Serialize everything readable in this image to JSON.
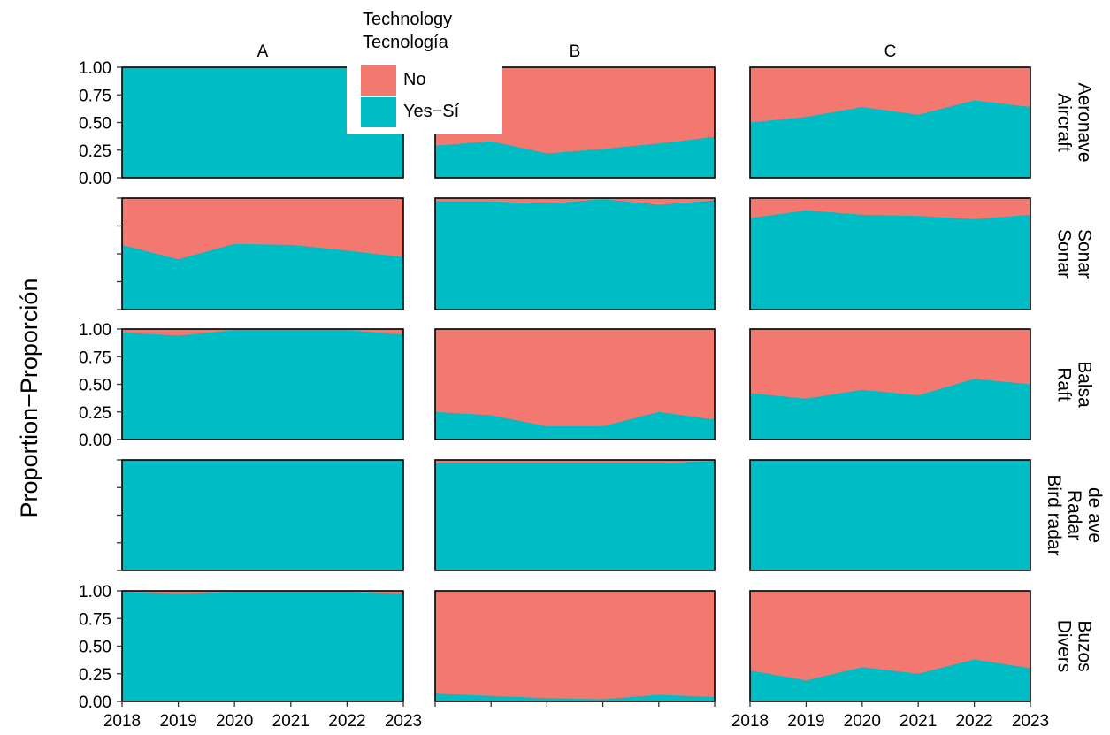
{
  "colors": {
    "no": "#F37870",
    "yes": "#00BCC4",
    "frame": "#000000"
  },
  "legend": {
    "title_line1": "Technology",
    "title_line2": "Tecnología",
    "items": [
      {
        "label": "No",
        "color": "#F37870"
      },
      {
        "label": "Yes−Sí",
        "color": "#00BCC4"
      }
    ]
  },
  "y_axis_title": "Proportion−Proporción",
  "chart_data": {
    "type": "area",
    "x": [
      2018,
      2019,
      2020,
      2021,
      2022,
      2023
    ],
    "x_tick_labels": [
      "2018",
      "2019",
      "2020",
      "2021",
      "2022",
      "2023"
    ],
    "y_tick_labels": [
      "0.00",
      "0.25",
      "0.50",
      "0.75",
      "1.00"
    ],
    "ylim": [
      0,
      1
    ],
    "columns": [
      "A",
      "B",
      "C"
    ],
    "rows": [
      {
        "label_line1": "Aircraft",
        "label_line2": "Aeronave"
      },
      {
        "label_line1": "Sonar",
        "label_line2": "Sonar"
      },
      {
        "label_line1": "Raft",
        "label_line2": "Balsa"
      },
      {
        "label_line1": "Bird radar",
        "label_line2": "Radar",
        "label_line3": "de ave"
      },
      {
        "label_line1": "Divers",
        "label_line2": "Buzos"
      }
    ],
    "series_order": [
      "Yes−Sí",
      "No"
    ],
    "yes_proportion": [
      [
        [
          1.0,
          1.0,
          1.0,
          1.0,
          1.0,
          1.0
        ],
        [
          0.29,
          0.33,
          0.22,
          0.26,
          0.31,
          0.37
        ],
        [
          0.5,
          0.55,
          0.64,
          0.57,
          0.7,
          0.64
        ]
      ],
      [
        [
          0.58,
          0.45,
          0.59,
          0.58,
          0.53,
          0.47
        ],
        [
          0.97,
          0.97,
          0.95,
          0.99,
          0.94,
          0.98
        ],
        [
          0.82,
          0.89,
          0.85,
          0.84,
          0.81,
          0.85
        ]
      ],
      [
        [
          0.97,
          0.94,
          0.99,
          0.99,
          0.99,
          0.95
        ],
        [
          0.25,
          0.22,
          0.12,
          0.12,
          0.25,
          0.18
        ],
        [
          0.42,
          0.37,
          0.45,
          0.4,
          0.55,
          0.5
        ]
      ],
      [
        [
          1.0,
          1.0,
          1.0,
          1.0,
          1.0,
          1.0
        ],
        [
          0.97,
          0.97,
          0.97,
          0.97,
          0.97,
          0.99
        ],
        [
          1.0,
          1.0,
          1.0,
          1.0,
          1.0,
          1.0
        ]
      ],
      [
        [
          0.99,
          0.97,
          0.99,
          0.99,
          0.99,
          0.97
        ],
        [
          0.07,
          0.05,
          0.03,
          0.02,
          0.06,
          0.04
        ],
        [
          0.28,
          0.19,
          0.31,
          0.25,
          0.38,
          0.3
        ]
      ]
    ],
    "y_ticks_shown_in_rows": [
      0,
      2,
      4
    ],
    "x_tick_labels_shown_in_columns": [
      0,
      2
    ]
  }
}
